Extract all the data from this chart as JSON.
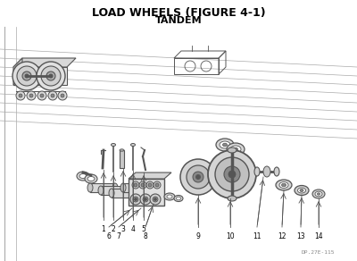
{
  "title_line1": "LOAD WHEELS (FIGURE 4-1)",
  "title_line2": "TANDEM",
  "title_fontsize": 9,
  "subtitle_fontsize": 8,
  "bg_color": "#ffffff",
  "dc": "#555555",
  "lc_light": "#aaaaaa",
  "fig_width": 4.0,
  "fig_height": 2.92,
  "dpi": 100,
  "watermark": "DP.27E-115",
  "watermark_color": "#888888",
  "watermark_fontsize": 4.5
}
